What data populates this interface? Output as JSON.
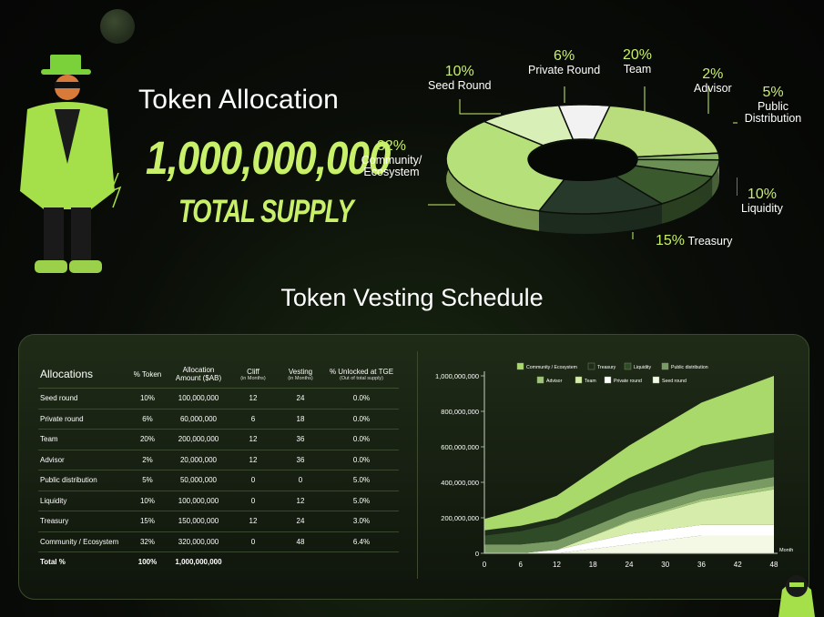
{
  "allocation": {
    "title": "Token Allocation",
    "supply_number": "1,000,000,000",
    "supply_label": "TOTAL SUPPLY",
    "slices": [
      {
        "pct": "20%",
        "label": "Team",
        "color": "#b9dd7d"
      },
      {
        "pct": "2%",
        "label": "Advisor",
        "color": "#8fb86a"
      },
      {
        "pct": "5%",
        "label": "Public Distribution",
        "color": "#6b8f55"
      },
      {
        "pct": "10%",
        "label": "Liquidity",
        "color": "#3a5a2e"
      },
      {
        "pct": "15%",
        "label": "Treasury",
        "color": "#26392a"
      },
      {
        "pct": "32%",
        "label": "Community/ Ecosystem",
        "color": "#b6e07a"
      },
      {
        "pct": "10%",
        "label": "Seed Round",
        "color": "#d9efb8"
      },
      {
        "pct": "6%",
        "label": "Private Round",
        "color": "#f2f2f2"
      }
    ]
  },
  "vesting": {
    "title": "Token Vesting Schedule",
    "columns": {
      "allocations": "Allocations",
      "pct_token": "% Token",
      "amount": "Allocation Amount ($AB)",
      "cliff": "Cliff",
      "cliff_sub": "(in Months)",
      "vesting": "Vesting",
      "vesting_sub": "(in Months)",
      "unlocked": "% Unlocked at TGE",
      "unlocked_sub": "(Out of total supply)"
    },
    "rows": [
      {
        "name": "Seed round",
        "pct": "10%",
        "amount": "100,000,000",
        "cliff": "12",
        "vesting": "24",
        "tge": "0.0%"
      },
      {
        "name": "Private round",
        "pct": "6%",
        "amount": "60,000,000",
        "cliff": "6",
        "vesting": "18",
        "tge": "0.0%"
      },
      {
        "name": "Team",
        "pct": "20%",
        "amount": "200,000,000",
        "cliff": "12",
        "vesting": "36",
        "tge": "0.0%"
      },
      {
        "name": "Advisor",
        "pct": "2%",
        "amount": "20,000,000",
        "cliff": "12",
        "vesting": "36",
        "tge": "0.0%"
      },
      {
        "name": "Public distribution",
        "pct": "5%",
        "amount": "50,000,000",
        "cliff": "0",
        "vesting": "0",
        "tge": "5.0%"
      },
      {
        "name": "Liquidity",
        "pct": "10%",
        "amount": "100,000,000",
        "cliff": "0",
        "vesting": "12",
        "tge": "5.0%"
      },
      {
        "name": "Treasury",
        "pct": "15%",
        "amount": "150,000,000",
        "cliff": "12",
        "vesting": "24",
        "tge": "3.0%"
      },
      {
        "name": "Community / Ecosystem",
        "pct": "32%",
        "amount": "320,000,000",
        "cliff": "0",
        "vesting": "48",
        "tge": "6.4%"
      }
    ],
    "total": {
      "name": "Total %",
      "pct": "100%",
      "amount": "1,000,000,000"
    }
  },
  "chart_data": [
    {
      "type": "pie",
      "title": "Token Allocation",
      "categories": [
        "Team",
        "Advisor",
        "Public Distribution",
        "Liquidity",
        "Treasury",
        "Community/ Ecosystem",
        "Seed Round",
        "Private Round"
      ],
      "values": [
        20,
        2,
        5,
        10,
        15,
        32,
        10,
        6
      ],
      "colors": [
        "#b9dd7d",
        "#8fb86a",
        "#6b8f55",
        "#3a5a2e",
        "#26392a",
        "#b6e07a",
        "#d9efb8",
        "#f2f2f2"
      ]
    },
    {
      "type": "area",
      "stacked": true,
      "xlabel": "Month",
      "x": [
        0,
        6,
        12,
        18,
        24,
        30,
        36,
        42,
        48
      ],
      "ylim": [
        0,
        1000000000
      ],
      "yticks": [
        "0",
        "200,000,000",
        "400,000,000",
        "600,000,000",
        "800,000,000",
        "1,000,000,000"
      ],
      "legend_position": "top",
      "series": [
        {
          "name": "Seed round",
          "color": "#f4f9e6",
          "values": [
            0,
            0,
            0,
            25000000,
            50000000,
            75000000,
            100000000,
            100000000,
            100000000
          ]
        },
        {
          "name": "Private round",
          "color": "#ffffff",
          "values": [
            0,
            0,
            20000000,
            40000000,
            60000000,
            60000000,
            60000000,
            60000000,
            60000000
          ]
        },
        {
          "name": "Team",
          "color": "#d6ecaa",
          "values": [
            0,
            0,
            0,
            33000000,
            67000000,
            100000000,
            133000000,
            167000000,
            200000000
          ]
        },
        {
          "name": "Advisor",
          "color": "#9fc47a",
          "values": [
            0,
            0,
            0,
            3000000,
            7000000,
            10000000,
            13000000,
            17000000,
            20000000
          ]
        },
        {
          "name": "Public distribution",
          "color": "#7a9a64",
          "values": [
            50000000,
            50000000,
            50000000,
            50000000,
            50000000,
            50000000,
            50000000,
            50000000,
            50000000
          ]
        },
        {
          "name": "Liquidity",
          "color": "#2f4a26",
          "values": [
            50000000,
            75000000,
            100000000,
            100000000,
            100000000,
            100000000,
            100000000,
            100000000,
            100000000
          ]
        },
        {
          "name": "Treasury",
          "color": "#1c2c18",
          "values": [
            30000000,
            30000000,
            30000000,
            60000000,
            90000000,
            120000000,
            150000000,
            150000000,
            150000000
          ]
        },
        {
          "name": "Community / Ecosystem",
          "color": "#a9d96a",
          "values": [
            64000000,
            94000000,
            124000000,
            153000000,
            183000000,
            213000000,
            243000000,
            280000000,
            320000000
          ]
        }
      ],
      "legend": [
        {
          "name": "Community / Ecosystem",
          "color": "#a9d96a"
        },
        {
          "name": "Treasury",
          "color": "#1c2c18"
        },
        {
          "name": "Liquidity",
          "color": "#2f4a26"
        },
        {
          "name": "Public distribution",
          "color": "#7a9a64"
        },
        {
          "name": "Advisor",
          "color": "#9fc47a"
        },
        {
          "name": "Team",
          "color": "#d6ecaa"
        },
        {
          "name": "Private round",
          "color": "#ffffff"
        },
        {
          "name": "Seed round",
          "color": "#f4f9e6"
        }
      ]
    }
  ]
}
